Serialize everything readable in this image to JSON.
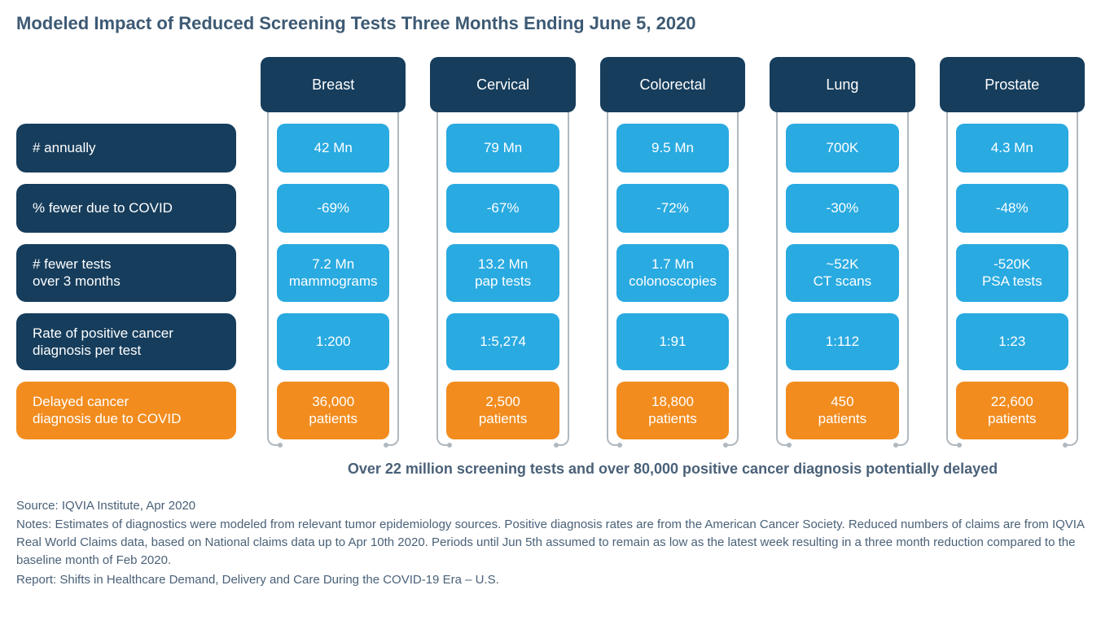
{
  "title": "Modeled Impact of Reduced Screening Tests Three Months Ending June 5, 2020",
  "colors": {
    "dark_blue": "#163d5c",
    "light_blue": "#29aae1",
    "orange": "#f28c1e",
    "title_text": "#3d5a74",
    "footnote_text": "#4a6178",
    "connector": "#b0b8bf",
    "background": "#ffffff"
  },
  "columns": [
    {
      "label": "Breast"
    },
    {
      "label": "Cervical"
    },
    {
      "label": "Colorectal"
    },
    {
      "label": "Lung"
    },
    {
      "label": "Prostate"
    }
  ],
  "rows": [
    {
      "label": "#  annually",
      "style": "blue",
      "cells": [
        "42 Mn",
        "79 Mn",
        "9.5 Mn",
        "700K",
        "4.3 Mn"
      ]
    },
    {
      "label": "% fewer due to COVID",
      "style": "blue",
      "cells": [
        "-69%",
        "-67%",
        "-72%",
        "-30%",
        "-48%"
      ]
    },
    {
      "label": "# fewer tests\nover 3 months",
      "style": "blue",
      "cells": [
        "7.2 Mn\nmammograms",
        "13.2 Mn\npap tests",
        "1.7 Mn\ncolonoscopies",
        "~52K\nCT scans",
        "-520K\nPSA tests"
      ]
    },
    {
      "label": "Rate of positive cancer\ndiagnosis per test",
      "style": "blue",
      "cells": [
        "1:200",
        "1:5,274",
        "1:91",
        "1:112",
        "1:23"
      ]
    },
    {
      "label": "Delayed cancer\ndiagnosis due to COVID",
      "style": "orange",
      "cells": [
        "36,000\npatients",
        "2,500\npatients",
        "18,800\npatients",
        "450\npatients",
        "22,600\npatients"
      ]
    }
  ],
  "summary": "Over 22 million screening tests and over 80,000 positive cancer diagnosis potentially delayed",
  "footnotes": {
    "source": "Source: IQVIA Institute, Apr 2020",
    "notes": "Notes: Estimates of diagnostics were modeled from relevant tumor epidemiology sources. Positive diagnosis rates are from the American Cancer Society. Reduced numbers of claims are from IQVIA Real World Claims data, based on National claims data up to Apr 10th 2020. Periods until Jun 5th assumed to remain as low as the latest week resulting in a three month reduction compared to the baseline month of Feb 2020.",
    "report": "Report: Shifts in Healthcare Demand, Delivery and Care During the COVID-19 Era – U.S."
  }
}
